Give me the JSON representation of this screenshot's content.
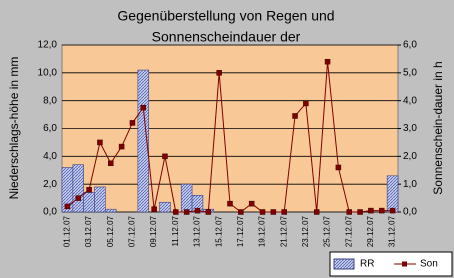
{
  "chart_data": {
    "type": "bar-line",
    "title": "Gegenüberstellung von Regen und",
    "subtitle": "Sonnenscheindauer der",
    "y_label": "Niederschlags-höhe in mm",
    "y2_label": "Sonnenschein-dauer in h",
    "categories": [
      "01.12.07",
      null,
      "03.12.07",
      null,
      "05.12.07",
      null,
      "07.12.07",
      null,
      "09.12.07",
      null,
      "11.12.07",
      null,
      "13.12.07",
      null,
      "15.12.07",
      null,
      "17.12.07",
      null,
      "19.12.07",
      null,
      "21.12.07",
      null,
      "23.12.07",
      null,
      "25.12.07",
      null,
      "27.12.07",
      null,
      "29.12.07",
      null,
      "31.12.07"
    ],
    "series": [
      {
        "name": "RR",
        "type": "bar",
        "color": "#9aa8e0",
        "values": [
          3.2,
          3.4,
          1.4,
          1.8,
          0.2,
          0,
          0,
          10.2,
          0,
          0.7,
          0,
          2.0,
          1.2,
          0.2,
          0,
          0,
          0,
          0,
          0,
          0,
          0,
          0,
          0,
          0,
          0,
          0,
          0,
          0,
          0,
          0,
          2.6
        ]
      },
      {
        "name": "Son",
        "type": "line",
        "axis": "y2",
        "color": "#800000",
        "values": [
          0.2,
          0.5,
          0.8,
          2.5,
          1.75,
          2.35,
          3.2,
          3.75,
          0.1,
          2.0,
          0,
          0,
          0.05,
          0,
          5.0,
          0.3,
          0,
          0.3,
          0,
          0,
          0,
          3.45,
          3.9,
          0,
          5.4,
          1.6,
          0,
          0,
          0.05,
          0.05,
          0.05
        ]
      }
    ],
    "ylim": [
      0,
      12
    ],
    "yticks": [
      {
        "value": 0,
        "label": "0,0"
      },
      {
        "value": 2,
        "label": "2,0"
      },
      {
        "value": 4,
        "label": "4,0"
      },
      {
        "value": 6,
        "label": "6,0"
      },
      {
        "value": 8,
        "label": "8,0"
      },
      {
        "value": 10,
        "label": "10,0"
      },
      {
        "value": 12,
        "label": "12,0"
      }
    ],
    "y2lim": [
      0,
      6
    ],
    "y2ticks": [
      {
        "value": 0,
        "label": "0,0"
      },
      {
        "value": 1,
        "label": "1,0"
      },
      {
        "value": 2,
        "label": "2,0"
      },
      {
        "value": 3,
        "label": "3,0"
      },
      {
        "value": 4,
        "label": "4,0"
      },
      {
        "value": 5,
        "label": "5,0"
      },
      {
        "value": 6,
        "label": "6,0"
      }
    ],
    "grid": true,
    "legend": "bottom-right"
  }
}
